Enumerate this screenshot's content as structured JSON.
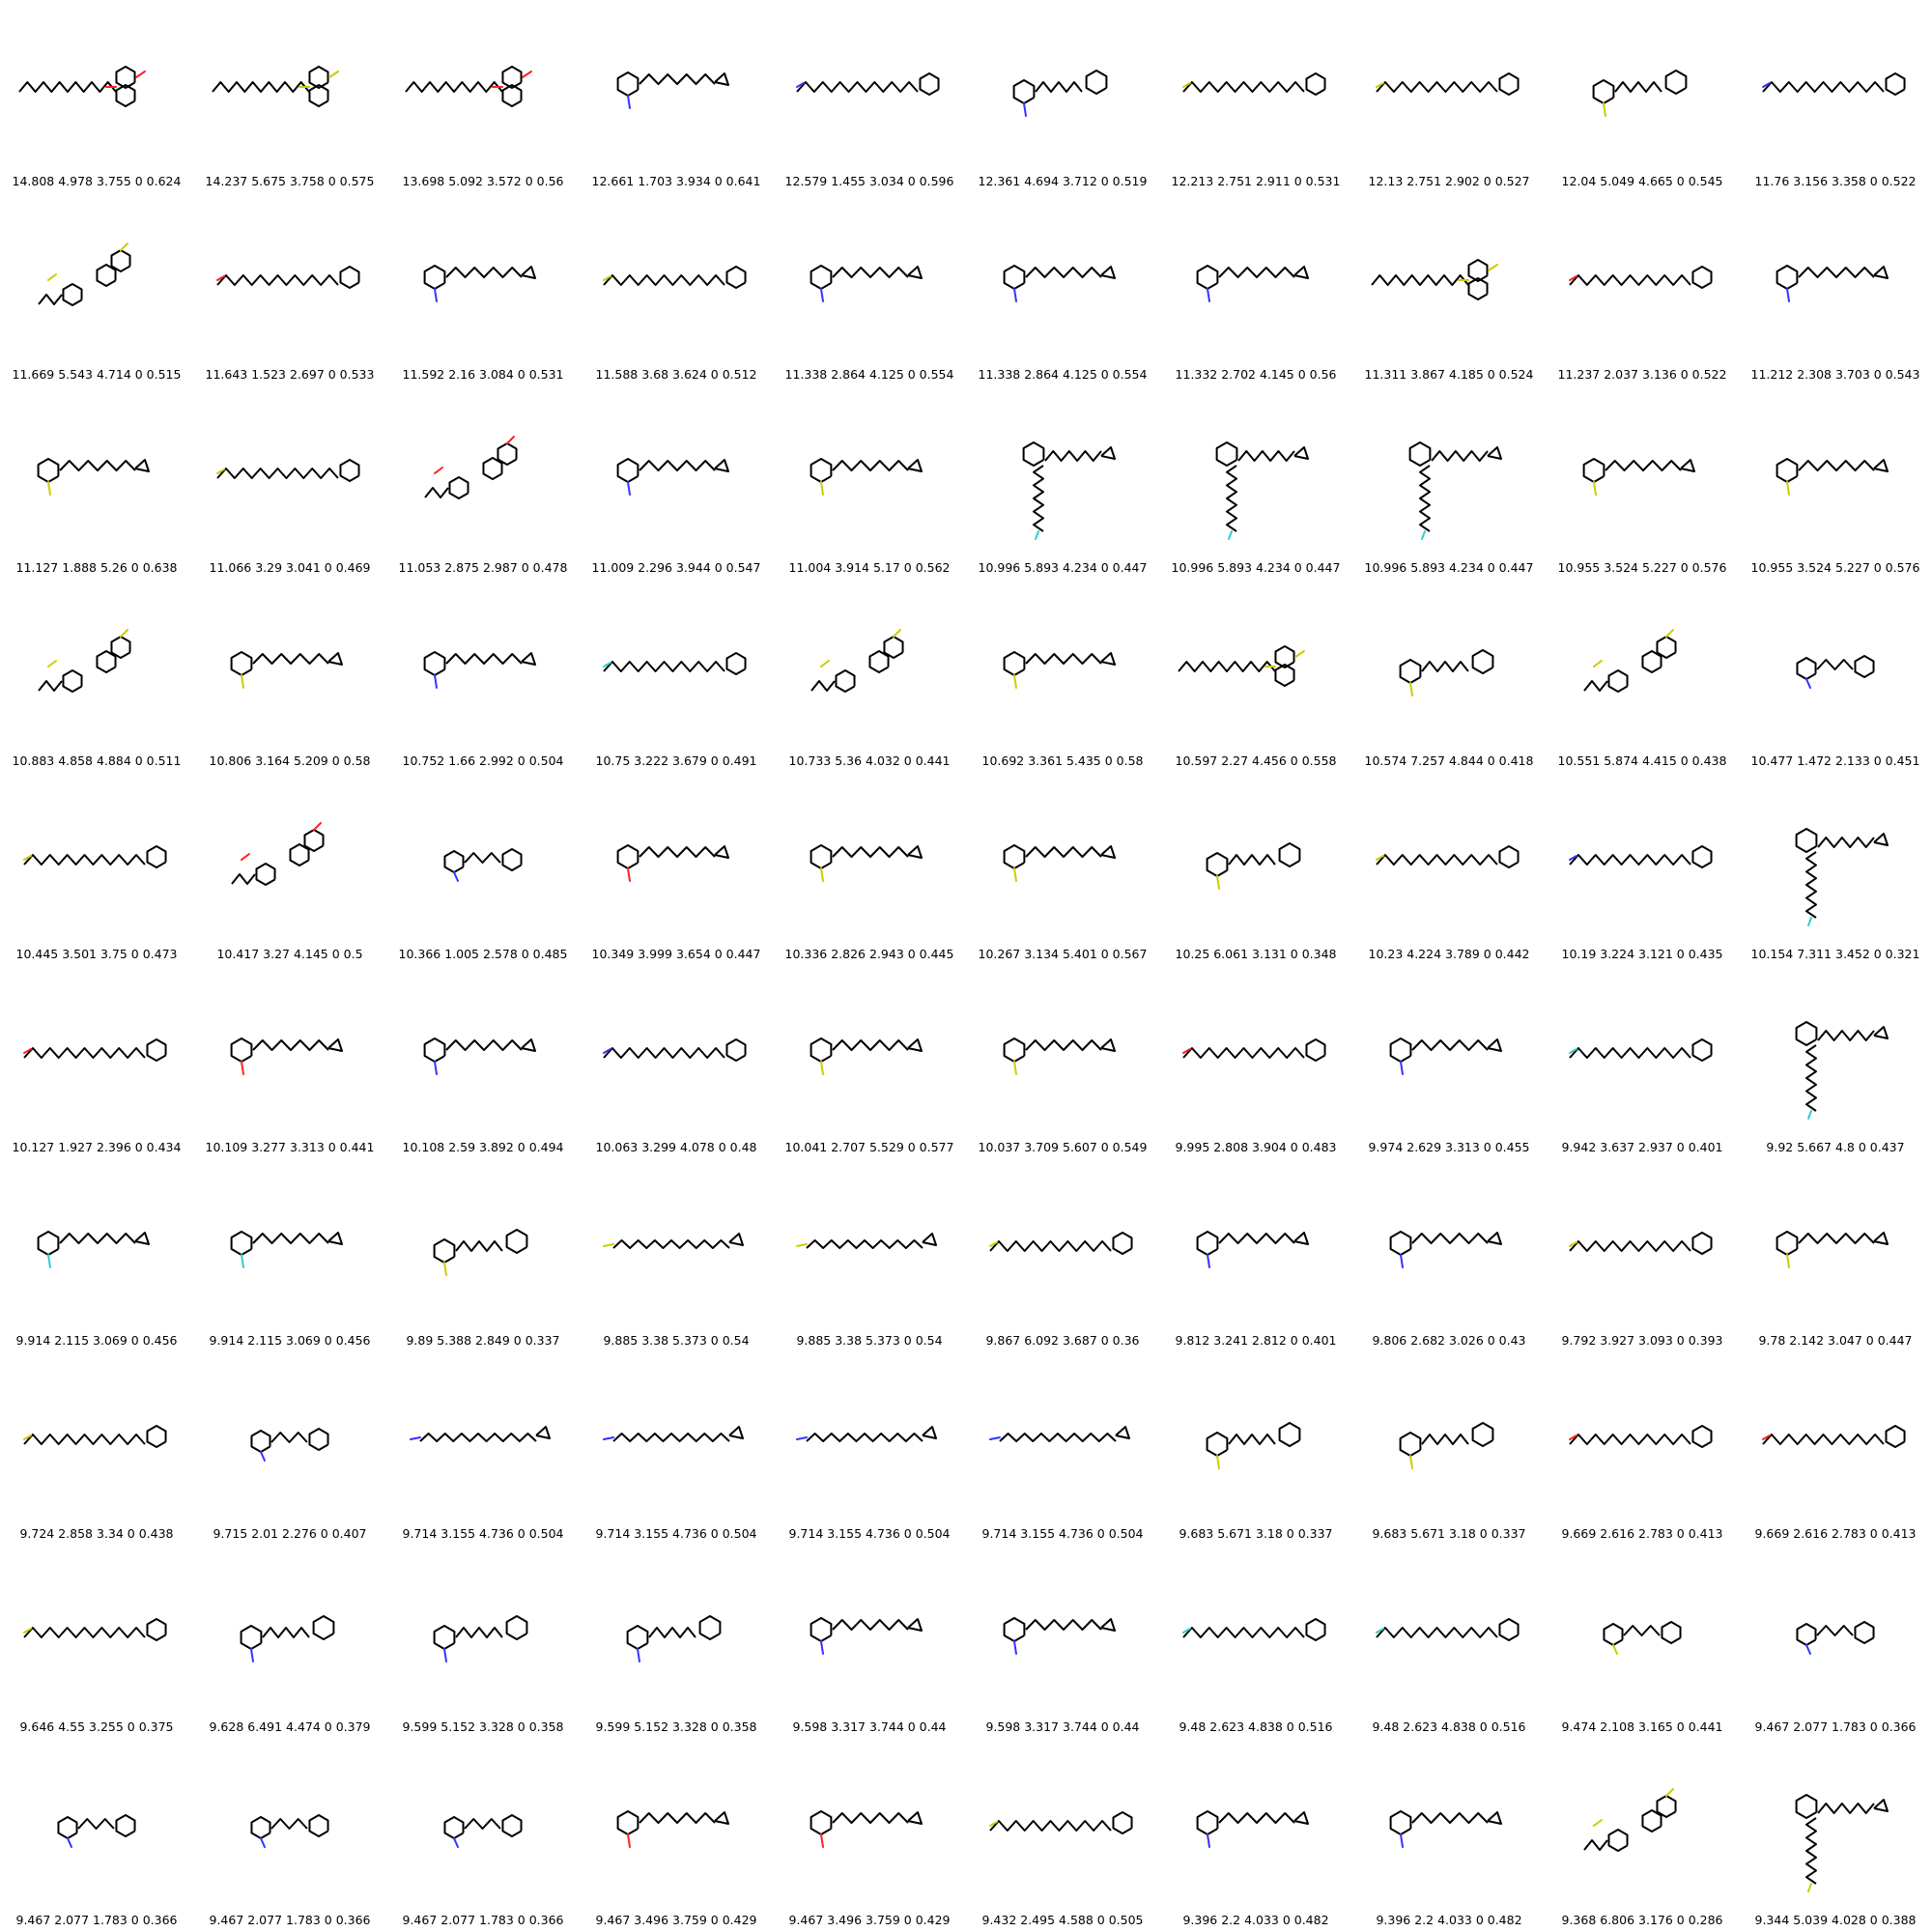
{
  "colors": {
    "bond": "#000000",
    "N": "#3333ff",
    "O": "#ff2020",
    "S": "#cccc00",
    "F": "#33cccc"
  },
  "molecules": [
    {
      "caption": "14.808 4.978 3.755 0 0.624",
      "shape": "chain-bicycle",
      "accent": "O"
    },
    {
      "caption": "14.237 5.675 3.758 0 0.575",
      "shape": "chain-bicycle",
      "accent": "S"
    },
    {
      "caption": "13.698 5.092 3.572 0 0.56",
      "shape": "chain-bicycle",
      "accent": "O"
    },
    {
      "caption": "12.661 1.703 3.934 0 0.641",
      "shape": "ring-epoxide",
      "accent": "N"
    },
    {
      "caption": "12.579 1.455 3.034 0 0.596",
      "shape": "chain-ring",
      "accent": "N"
    },
    {
      "caption": "12.361 4.694 3.712 0 0.519",
      "shape": "two-rings",
      "accent": "N"
    },
    {
      "caption": "12.213 2.751 2.911 0 0.531",
      "shape": "chain-ring",
      "accent": "S"
    },
    {
      "caption": "12.13 2.751 2.902 0 0.527",
      "shape": "chain-ring",
      "accent": "S"
    },
    {
      "caption": "12.04 5.049 4.665 0 0.545",
      "shape": "two-rings",
      "accent": "S"
    },
    {
      "caption": "11.76 3.156 3.358 0 0.522",
      "shape": "chain-ring",
      "accent": "N"
    },
    {
      "caption": "11.669 5.543 4.714 0 0.515",
      "shape": "cluster",
      "accent": "S"
    },
    {
      "caption": "11.643 1.523 2.697 0 0.533",
      "shape": "chain-ring",
      "accent": "O"
    },
    {
      "caption": "11.592 2.16 3.084 0 0.531",
      "shape": "ring-epoxide",
      "accent": "N"
    },
    {
      "caption": "11.588 3.68 3.624 0 0.512",
      "shape": "chain-ring",
      "accent": "S"
    },
    {
      "caption": "11.338 2.864 4.125 0 0.554",
      "shape": "ring-epoxide",
      "accent": "N"
    },
    {
      "caption": "11.338 2.864 4.125 0 0.554",
      "shape": "ring-epoxide",
      "accent": "N"
    },
    {
      "caption": "11.332 2.702 4.145 0 0.56",
      "shape": "ring-epoxide",
      "accent": "N"
    },
    {
      "caption": "11.311 3.867 4.185 0 0.524",
      "shape": "chain-bicycle",
      "accent": "S"
    },
    {
      "caption": "11.237 2.037 3.136 0 0.522",
      "shape": "chain-ring",
      "accent": "O"
    },
    {
      "caption": "11.212 2.308 3.703 0 0.543",
      "shape": "ring-epoxide",
      "accent": "N"
    },
    {
      "caption": "11.127 1.888 5.26 0 0.638",
      "shape": "ring-epoxide",
      "accent": "S"
    },
    {
      "caption": "11.066 3.29 3.041 0 0.469",
      "shape": "chain-ring",
      "accent": "S"
    },
    {
      "caption": "11.053 2.875 2.987 0 0.478",
      "shape": "cluster",
      "accent": "O"
    },
    {
      "caption": "11.009 2.296 3.944 0 0.547",
      "shape": "ring-epoxide",
      "accent": "N"
    },
    {
      "caption": "11.004 3.914 5.17 0 0.562",
      "shape": "ring-epoxide",
      "accent": "S"
    },
    {
      "caption": "10.996 5.893 4.234 0 0.447",
      "shape": "ring-tail",
      "accent": "F"
    },
    {
      "caption": "10.996 5.893 4.234 0 0.447",
      "shape": "ring-tail",
      "accent": "F"
    },
    {
      "caption": "10.996 5.893 4.234 0 0.447",
      "shape": "ring-tail",
      "accent": "F"
    },
    {
      "caption": "10.955 3.524 5.227 0 0.576",
      "shape": "ring-epoxide",
      "accent": "S"
    },
    {
      "caption": "10.955 3.524 5.227 0 0.576",
      "shape": "ring-epoxide",
      "accent": "S"
    },
    {
      "caption": "10.883 4.858 4.884 0 0.511",
      "shape": "cluster",
      "accent": "S"
    },
    {
      "caption": "10.806 3.164 5.209 0 0.58",
      "shape": "ring-epoxide",
      "accent": "S"
    },
    {
      "caption": "10.752 1.66 2.992 0 0.504",
      "shape": "ring-epoxide",
      "accent": "N"
    },
    {
      "caption": "10.75 3.222 3.679 0 0.491",
      "shape": "chain-ring",
      "accent": "F"
    },
    {
      "caption": "10.733 5.36 4.032 0 0.441",
      "shape": "cluster",
      "accent": "S"
    },
    {
      "caption": "10.692 3.361 5.435 0 0.58",
      "shape": "ring-epoxide",
      "accent": "S"
    },
    {
      "caption": "10.597 2.27 4.456 0 0.558",
      "shape": "chain-bicycle",
      "accent": "S"
    },
    {
      "caption": "10.574 7.257 4.844 0 0.418",
      "shape": "two-rings",
      "accent": "S"
    },
    {
      "caption": "10.551 5.874 4.415 0 0.438",
      "shape": "cluster",
      "accent": "S"
    },
    {
      "caption": "10.477 1.472 2.133 0 0.451",
      "shape": "small-pair",
      "accent": "N"
    },
    {
      "caption": "10.445 3.501 3.75 0 0.473",
      "shape": "chain-ring",
      "accent": "S"
    },
    {
      "caption": "10.417 3.27 4.145 0 0.5",
      "shape": "cluster",
      "accent": "O"
    },
    {
      "caption": "10.366 1.005 2.578 0 0.485",
      "shape": "small-pair",
      "accent": "N"
    },
    {
      "caption": "10.349 3.999 3.654 0 0.447",
      "shape": "ring-epoxide",
      "accent": "O"
    },
    {
      "caption": "10.336 2.826 2.943 0 0.445",
      "shape": "ring-epoxide",
      "accent": "S"
    },
    {
      "caption": "10.267 3.134 5.401 0 0.567",
      "shape": "ring-epoxide",
      "accent": "S"
    },
    {
      "caption": "10.25 6.061 3.131 0 0.348",
      "shape": "two-rings",
      "accent": "S"
    },
    {
      "caption": "10.23 4.224 3.789 0 0.442",
      "shape": "chain-ring",
      "accent": "S"
    },
    {
      "caption": "10.19 3.224 3.121 0 0.435",
      "shape": "chain-ring",
      "accent": "N"
    },
    {
      "caption": "10.154 7.311 3.452 0 0.321",
      "shape": "ring-tail",
      "accent": "F"
    },
    {
      "caption": "10.127 1.927 2.396 0 0.434",
      "shape": "chain-ring",
      "accent": "O"
    },
    {
      "caption": "10.109 3.277 3.313 0 0.441",
      "shape": "ring-epoxide",
      "accent": "O"
    },
    {
      "caption": "10.108 2.59 3.892 0 0.494",
      "shape": "ring-epoxide",
      "accent": "N"
    },
    {
      "caption": "10.063 3.299 4.078 0 0.48",
      "shape": "chain-ring",
      "accent": "N"
    },
    {
      "caption": "10.041 2.707 5.529 0 0.577",
      "shape": "ring-epoxide",
      "accent": "S"
    },
    {
      "caption": "10.037 3.709 5.607 0 0.549",
      "shape": "ring-epoxide",
      "accent": "S"
    },
    {
      "caption": "9.995 2.808 3.904 0 0.483",
      "shape": "chain-ring",
      "accent": "O"
    },
    {
      "caption": "9.974 2.629 3.313 0 0.455",
      "shape": "ring-epoxide",
      "accent": "N"
    },
    {
      "caption": "9.942 3.637 2.937 0 0.401",
      "shape": "chain-ring",
      "accent": "F"
    },
    {
      "caption": "9.92 5.667 4.8 0 0.437",
      "shape": "ring-tail",
      "accent": "F"
    },
    {
      "caption": "9.914 2.115 3.069 0 0.456",
      "shape": "ring-epoxide",
      "accent": "F"
    },
    {
      "caption": "9.914 2.115 3.069 0 0.456",
      "shape": "ring-epoxide",
      "accent": "F"
    },
    {
      "caption": "9.89 5.388 2.849 0 0.337",
      "shape": "two-rings",
      "accent": "S"
    },
    {
      "caption": "9.885 3.38 5.373 0 0.54",
      "shape": "chain-epoxide",
      "accent": "S"
    },
    {
      "caption": "9.885 3.38 5.373 0 0.54",
      "shape": "chain-epoxide",
      "accent": "S"
    },
    {
      "caption": "9.867 6.092 3.687 0 0.36",
      "shape": "chain-ring",
      "accent": "S"
    },
    {
      "caption": "9.812 3.241 2.812 0 0.401",
      "shape": "ring-epoxide",
      "accent": "N"
    },
    {
      "caption": "9.806 2.682 3.026 0 0.43",
      "shape": "ring-epoxide",
      "accent": "N"
    },
    {
      "caption": "9.792 3.927 3.093 0 0.393",
      "shape": "chain-ring",
      "accent": "S"
    },
    {
      "caption": "9.78 2.142 3.047 0 0.447",
      "shape": "ring-epoxide",
      "accent": "S"
    },
    {
      "caption": "9.724 2.858 3.34 0 0.438",
      "shape": "chain-ring",
      "accent": "S"
    },
    {
      "caption": "9.715 2.01 2.276 0 0.407",
      "shape": "small-pair",
      "accent": "N"
    },
    {
      "caption": "9.714 3.155 4.736 0 0.504",
      "shape": "chain-epoxide",
      "accent": "N"
    },
    {
      "caption": "9.714 3.155 4.736 0 0.504",
      "shape": "chain-epoxide",
      "accent": "N"
    },
    {
      "caption": "9.714 3.155 4.736 0 0.504",
      "shape": "chain-epoxide",
      "accent": "N"
    },
    {
      "caption": "9.714 3.155 4.736 0 0.504",
      "shape": "chain-epoxide",
      "accent": "N"
    },
    {
      "caption": "9.683 5.671 3.18 0 0.337",
      "shape": "two-rings",
      "accent": "S"
    },
    {
      "caption": "9.683 5.671 3.18 0 0.337",
      "shape": "two-rings",
      "accent": "S"
    },
    {
      "caption": "9.669 2.616 2.783 0 0.413",
      "shape": "chain-ring",
      "accent": "O"
    },
    {
      "caption": "9.669 2.616 2.783 0 0.413",
      "shape": "chain-ring",
      "accent": "O"
    },
    {
      "caption": "9.646 4.55 3.255 0 0.375",
      "shape": "chain-ring",
      "accent": "S"
    },
    {
      "caption": "9.628 6.491 4.474 0 0.379",
      "shape": "two-rings",
      "accent": "N"
    },
    {
      "caption": "9.599 5.152 3.328 0 0.358",
      "shape": "two-rings",
      "accent": "N"
    },
    {
      "caption": "9.599 5.152 3.328 0 0.358",
      "shape": "two-rings",
      "accent": "N"
    },
    {
      "caption": "9.598 3.317 3.744 0 0.44",
      "shape": "ring-epoxide",
      "accent": "N"
    },
    {
      "caption": "9.598 3.317 3.744 0 0.44",
      "shape": "ring-epoxide",
      "accent": "N"
    },
    {
      "caption": "9.48 2.623 4.838 0 0.516",
      "shape": "chain-ring",
      "accent": "F"
    },
    {
      "caption": "9.48 2.623 4.838 0 0.516",
      "shape": "chain-ring",
      "accent": "F"
    },
    {
      "caption": "9.474 2.108 3.165 0 0.441",
      "shape": "small-pair",
      "accent": "S"
    },
    {
      "caption": "9.467 2.077 1.783 0 0.366",
      "shape": "small-pair",
      "accent": "N"
    },
    {
      "caption": "9.467 2.077 1.783 0 0.366",
      "shape": "small-pair",
      "accent": "N"
    },
    {
      "caption": "9.467 2.077 1.783 0 0.366",
      "shape": "small-pair",
      "accent": "N"
    },
    {
      "caption": "9.467 2.077 1.783 0 0.366",
      "shape": "small-pair",
      "accent": "N"
    },
    {
      "caption": "9.467 3.496 3.759 0 0.429",
      "shape": "ring-epoxide",
      "accent": "O"
    },
    {
      "caption": "9.467 3.496 3.759 0 0.429",
      "shape": "ring-epoxide",
      "accent": "O"
    },
    {
      "caption": "9.432 2.495 4.588 0 0.505",
      "shape": "chain-ring",
      "accent": "S"
    },
    {
      "caption": "9.396 2.2 4.033 0 0.482",
      "shape": "ring-epoxide",
      "accent": "N"
    },
    {
      "caption": "9.396 2.2 4.033 0 0.482",
      "shape": "ring-epoxide",
      "accent": "N"
    },
    {
      "caption": "9.368 6.806 3.176 0 0.286",
      "shape": "cluster",
      "accent": "S"
    },
    {
      "caption": "9.344 5.039 4.028 0 0.388",
      "shape": "ring-tail",
      "accent": "S"
    }
  ]
}
